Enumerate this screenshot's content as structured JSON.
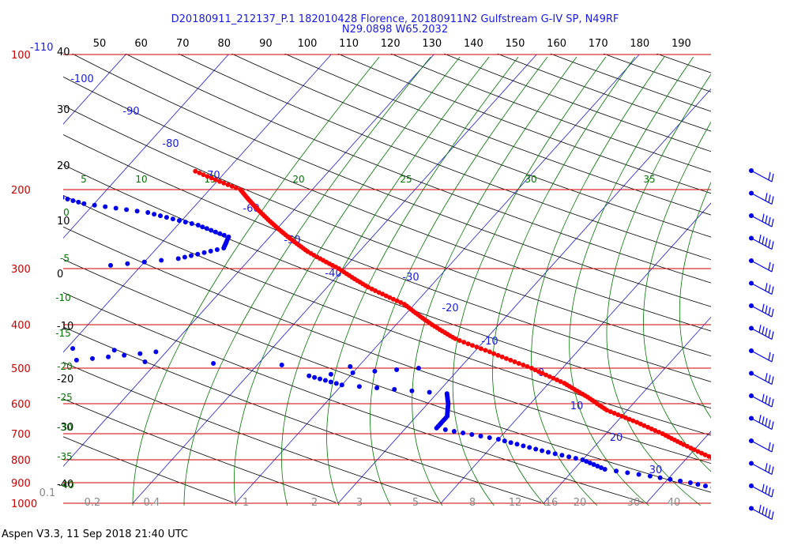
{
  "header": {
    "title_line1": "D20180911_212137_P.1 182010428 Florence, 20180911N2 Gulfstream G-IV SP, N49RF",
    "title_line2": "N29.0898 W65.2032"
  },
  "footer": {
    "text": "Aspen V3.3, 11 Sep 2018  21:40 UTC"
  },
  "colors": {
    "isobar": "#cc0000",
    "isotherm": "#1a1ae6",
    "dry_adiabat": "#000000",
    "moist_adiabat": "#007700",
    "mixing_ratio": "#888888",
    "temperature": "#ff0000",
    "dewpoint": "#0000ee",
    "wind_barb": "#0000ee"
  },
  "chart_data": {
    "type": "skew-t log-p",
    "pressure_unit": "hPa",
    "pressure_labels": [
      "100",
      "200",
      "300",
      "400",
      "500",
      "600",
      "700",
      "800",
      "900",
      "1000"
    ],
    "pressure_values": [
      100,
      200,
      300,
      400,
      500,
      600,
      700,
      800,
      900,
      1000
    ],
    "extra_left_label": "-110",
    "top_axis_labels": [
      "50",
      "60",
      "70",
      "80",
      "90",
      "100",
      "110",
      "120",
      "130",
      "140",
      "150",
      "160",
      "170",
      "180",
      "190"
    ],
    "left_axis_labels": [
      "40",
      "30",
      "20",
      "10",
      "0",
      "-10",
      "-20",
      "-30",
      "-40"
    ],
    "isotherm_labels": [
      "-100",
      "-90",
      "-80",
      "-70",
      "-60",
      "-50",
      "-40",
      "-30",
      "-20",
      "-10",
      "0",
      "10",
      "20",
      "30"
    ],
    "moist_adiabat_labels": [
      "5",
      "10",
      "15",
      "20",
      "25",
      "30",
      "35",
      "0",
      "-5",
      "-10",
      "-15",
      "-20",
      "-25",
      "-30",
      "-35",
      "-40"
    ],
    "mixing_ratio_labels": [
      "0.1",
      "0.2",
      "0.4",
      "1",
      "2",
      "3",
      "5",
      "8",
      "12",
      "16",
      "20",
      "30",
      "40"
    ],
    "temperature_profile": [
      {
        "p": 182,
        "t": -63
      },
      {
        "p": 200,
        "t": -57
      },
      {
        "p": 225,
        "t": -53
      },
      {
        "p": 250,
        "t": -49
      },
      {
        "p": 275,
        "t": -45
      },
      {
        "p": 300,
        "t": -40.5
      },
      {
        "p": 330,
        "t": -36
      },
      {
        "p": 360,
        "t": -31
      },
      {
        "p": 400,
        "t": -26.5
      },
      {
        "p": 430,
        "t": -23
      },
      {
        "p": 460,
        "t": -18.5
      },
      {
        "p": 500,
        "t": -13
      },
      {
        "p": 540,
        "t": -8.5
      },
      {
        "p": 580,
        "t": -5
      },
      {
        "p": 620,
        "t": -2
      },
      {
        "p": 660,
        "t": 2
      },
      {
        "p": 700,
        "t": 5.5
      },
      {
        "p": 740,
        "t": 8.5
      },
      {
        "p": 780,
        "t": 11.5
      },
      {
        "p": 820,
        "t": 14.5
      },
      {
        "p": 855,
        "t": 18.5
      },
      {
        "p": 880,
        "t": 19
      },
      {
        "p": 900,
        "t": 18
      },
      {
        "p": 920,
        "t": 19.5
      },
      {
        "p": 950,
        "t": 22
      },
      {
        "p": 980,
        "t": 24.5
      },
      {
        "p": 1002,
        "t": 26
      }
    ],
    "dewpoint_profile": [
      {
        "p": 205,
        "td": -75
      },
      {
        "p": 215,
        "td": -71
      },
      {
        "p": 225,
        "td": -64
      },
      {
        "p": 240,
        "td": -58
      },
      {
        "p": 255,
        "td": -54
      },
      {
        "p": 270,
        "td": -53.5
      },
      {
        "p": 285,
        "td": -57
      },
      {
        "p": 295,
        "td": -63
      },
      {
        "p": 300,
        "td": -73
      },
      {
        "p": 310,
        "td": -86
      },
      {
        "p": 330,
        "td": -84
      },
      {
        "p": 350,
        "td": -86
      },
      {
        "p": 370,
        "td": -77
      },
      {
        "p": 385,
        "td": -91
      },
      {
        "p": 400,
        "td": -92
      },
      {
        "p": 420,
        "td": -80
      },
      {
        "p": 440,
        "td": -72
      },
      {
        "p": 460,
        "td": -51
      },
      {
        "p": 480,
        "td": -58
      },
      {
        "p": 500,
        "td": -24
      },
      {
        "p": 520,
        "td": -34
      },
      {
        "p": 545,
        "td": -30
      },
      {
        "p": 570,
        "td": -19
      },
      {
        "p": 600,
        "td": -18
      },
      {
        "p": 640,
        "td": -17
      },
      {
        "p": 680,
        "td": -17
      },
      {
        "p": 720,
        "td": -10
      },
      {
        "p": 770,
        "td": -4
      },
      {
        "p": 800,
        "td": 0
      },
      {
        "p": 840,
        "td": 3
      },
      {
        "p": 870,
        "td": 8
      },
      {
        "p": 900,
        "td": 12.5
      },
      {
        "p": 930,
        "td": 16
      },
      {
        "p": 960,
        "td": 19
      },
      {
        "p": 990,
        "td": 21
      },
      {
        "p": 1002,
        "td": 22
      }
    ],
    "wind_barb_levels": 16
  }
}
